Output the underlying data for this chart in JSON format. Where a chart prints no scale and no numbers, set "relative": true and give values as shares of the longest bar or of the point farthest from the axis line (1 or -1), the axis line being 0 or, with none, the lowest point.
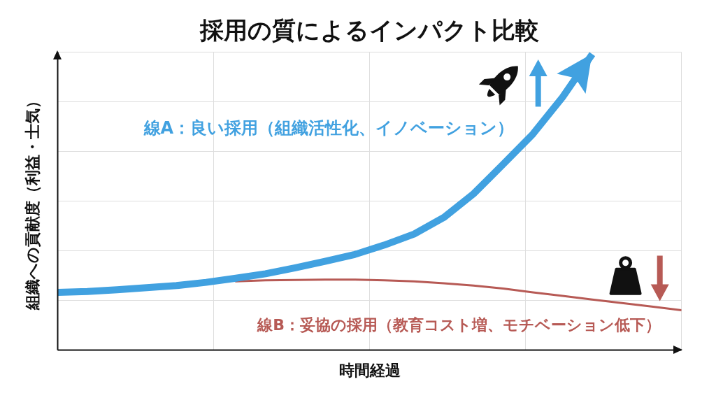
{
  "chart_data": {
    "type": "line",
    "title": "採用の質によるインパクト比較",
    "xlabel": "時間経過",
    "ylabel": "組織への貢献度（利益・士気）",
    "relative": true,
    "grid": true,
    "categories": [
      null,
      null,
      null,
      null,
      null,
      null,
      null,
      null,
      null,
      null,
      null,
      null,
      null,
      null,
      null,
      null,
      null,
      null,
      null,
      null,
      null,
      null
    ],
    "series": [
      {
        "name": "線A：良い採用（組織活性化、イノベーション）",
        "color": "#41a1e0",
        "values": [
          0.195,
          0.198,
          0.204,
          0.211,
          0.218,
          0.229,
          0.243,
          0.258,
          0.278,
          0.3,
          0.323,
          0.355,
          0.392,
          0.448,
          0.528,
          0.628,
          0.73,
          0.855,
          1.0,
          null,
          null,
          null
        ]
      },
      {
        "name": "線B：妥協の採用（教育コスト増、モチベーション低下）",
        "color": "#b75a55",
        "values": [
          null,
          null,
          null,
          null,
          null,
          null,
          0.232,
          0.236,
          0.237,
          0.238,
          0.238,
          0.236,
          0.232,
          0.226,
          0.218,
          0.208,
          0.195,
          0.183,
          0.171,
          0.159,
          0.147,
          0.135
        ]
      }
    ]
  }
}
